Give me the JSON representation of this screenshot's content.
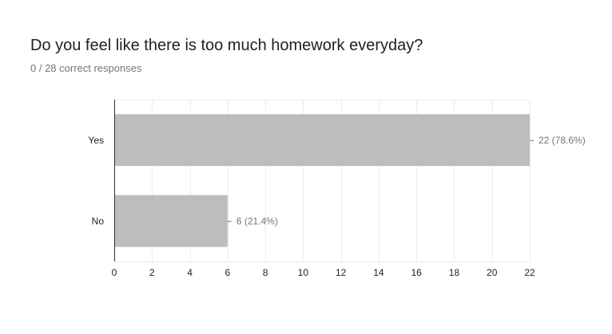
{
  "question": {
    "title": "Do you feel like there is too much homework everyday?",
    "summary": "0 / 28 correct responses"
  },
  "colors": {
    "bar": "#bdbdbd",
    "grid": "#ebebeb",
    "axis": "#333333",
    "value_text": "#757575"
  },
  "chart_data": {
    "type": "bar",
    "orientation": "horizontal",
    "categories": [
      "Yes",
      "No"
    ],
    "values": [
      22,
      6
    ],
    "value_labels": [
      "22 (78.6%)",
      "6 (21.4%)"
    ],
    "xlim": [
      0,
      22
    ],
    "xticks": [
      0,
      2,
      4,
      6,
      8,
      10,
      12,
      14,
      16,
      18,
      20,
      22
    ],
    "grid": true,
    "legend": "none"
  }
}
